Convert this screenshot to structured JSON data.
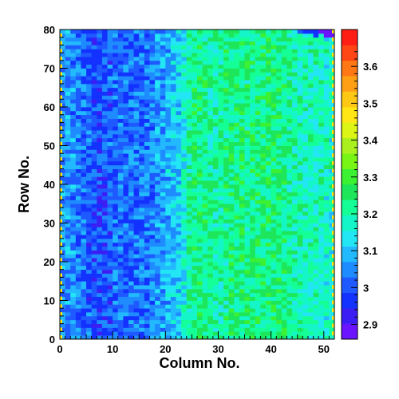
{
  "chart_data": {
    "type": "heatmap",
    "title": "",
    "xlabel": "Column No.",
    "ylabel": "Row No.",
    "x_range": [
      0,
      52
    ],
    "y_range": [
      0,
      80
    ],
    "x_ticks": [
      "0",
      "10",
      "20",
      "30",
      "40",
      "50"
    ],
    "y_ticks": [
      "0",
      "10",
      "20",
      "30",
      "40",
      "50",
      "60",
      "70",
      "80"
    ],
    "color_scale": {
      "range": [
        2.86,
        3.7
      ],
      "ticks": [
        "2.9",
        "3",
        "3.1",
        "3.2",
        "3.3",
        "3.4",
        "3.5",
        "3.6"
      ],
      "palette": [
        "#6a14ff",
        "#3c1ef5",
        "#1432ff",
        "#1e5aff",
        "#1e8cff",
        "#23b9ff",
        "#23e6f5",
        "#14f5c8",
        "#14ff96",
        "#1ee65a",
        "#3cf032",
        "#78f514",
        "#aaf01e",
        "#dcf514",
        "#ffe614",
        "#ffc814",
        "#ffa014",
        "#ff7814",
        "#ff4614",
        "#ff1e14"
      ]
    },
    "pattern": {
      "n_columns": 52,
      "n_rows": 80,
      "column_mean_profile": [
        [
          0,
          3.06
        ],
        [
          3,
          3.05
        ],
        [
          5,
          3.02
        ],
        [
          7,
          2.98
        ],
        [
          9,
          3.0
        ],
        [
          11,
          3.03
        ],
        [
          13,
          3.02
        ],
        [
          15,
          3.02
        ],
        [
          17,
          3.03
        ],
        [
          20,
          3.08
        ],
        [
          23,
          3.12
        ],
        [
          24,
          3.2
        ],
        [
          26,
          3.23
        ],
        [
          30,
          3.2
        ],
        [
          33,
          3.23
        ],
        [
          36,
          3.22
        ],
        [
          40,
          3.24
        ],
        [
          44,
          3.2
        ],
        [
          48,
          3.18
        ],
        [
          52,
          3.17
        ]
      ],
      "noise_amplitude": 0.07,
      "border_value": 3.45,
      "top_right_highlights": [
        {
          "col": 45,
          "row": 79,
          "value": 3.0
        },
        {
          "col": 46,
          "row": 79,
          "value": 2.95
        },
        {
          "col": 47,
          "row": 79,
          "value": 2.95
        },
        {
          "col": 48,
          "row": 79,
          "value": 2.95
        },
        {
          "col": 49,
          "row": 79,
          "value": 2.9
        },
        {
          "col": 50,
          "row": 79,
          "value": 2.9
        },
        {
          "col": 50,
          "row": 78,
          "value": 2.9
        },
        {
          "col": 51,
          "row": 78,
          "value": 2.88
        },
        {
          "col": 51,
          "row": 79,
          "value": 2.88
        },
        {
          "col": 48,
          "row": 78,
          "value": 2.97
        }
      ]
    }
  }
}
